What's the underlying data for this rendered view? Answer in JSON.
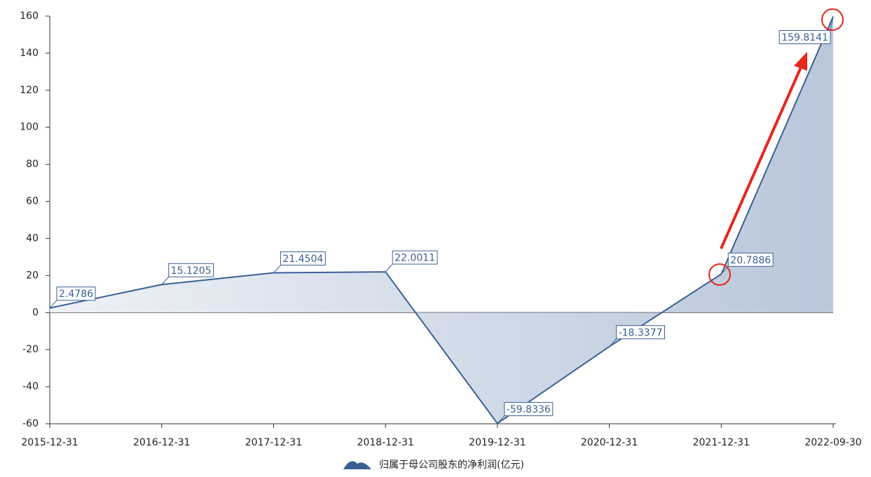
{
  "chart_data": {
    "type": "line",
    "categories": [
      "2015-12-31",
      "2016-12-31",
      "2017-12-31",
      "2018-12-31",
      "2019-12-31",
      "2020-12-31",
      "2021-12-31",
      "2022-09-30"
    ],
    "series": [
      {
        "name": "归属于母公司股东的净利润(亿元)",
        "color": "#3a5f95",
        "values": [
          2.4786,
          15.1205,
          21.4504,
          22.0011,
          -59.8336,
          -18.3377,
          20.7886,
          159.8141
        ]
      }
    ],
    "ylim": [
      -60,
      160
    ],
    "yticks": [
      -60,
      -40,
      -20,
      0,
      20,
      40,
      60,
      80,
      100,
      120,
      140,
      160
    ],
    "area": true,
    "value_labels_shown": true
  }
}
